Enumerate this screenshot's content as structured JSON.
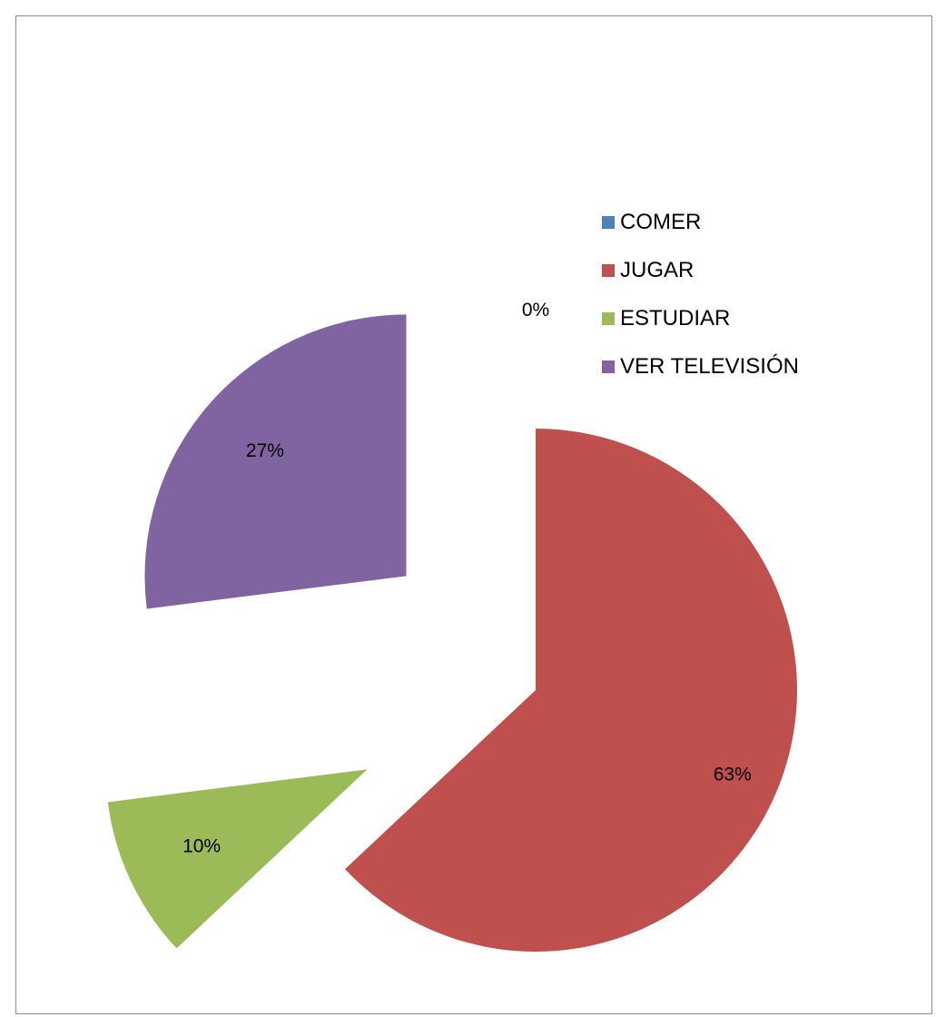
{
  "chart_data": {
    "type": "pie",
    "categories": [
      "COMER",
      "JUGAR",
      "ESTUDIAR",
      "VER TELEVISIÓN"
    ],
    "values": [
      0,
      63,
      10,
      27
    ],
    "labels": [
      "0%",
      "63%",
      "10%",
      "27%"
    ],
    "colors": [
      "#4f81bd",
      "#c0504d",
      "#9bbb59",
      "#8064a2"
    ],
    "exploded": true,
    "legend": "right",
    "title": ""
  }
}
